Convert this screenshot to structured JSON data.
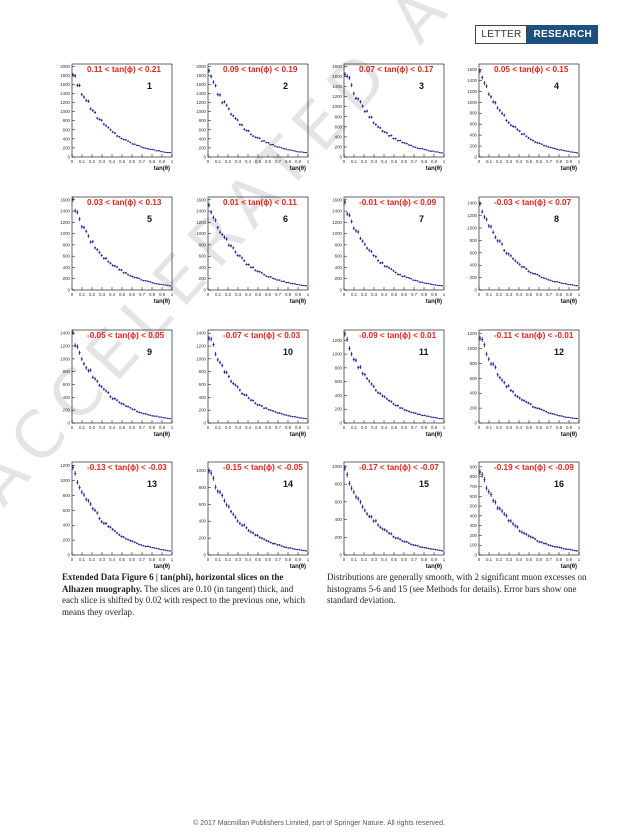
{
  "header": {
    "letter": "LETTER",
    "research": "RESEARCH"
  },
  "watermark": "ACCELERATED ARTICLE PREVIEW",
  "caption": {
    "title": "Extended Data Figure 6 | tan(phi), horizontal slices on the Alhazen muography.",
    "body": " The slices are 0.10 (in tangent) thick, and each slice is shifted by 0.02 with respect to the previous one, which means they overlap.",
    "right": "Distributions are generally smooth, with 2 significant muon excesses on histograms 5-6 and 15 (see Methods for details). Error bars show one standard deviation."
  },
  "footer": "© 2017 Macmillan Publishers Limited, part of Springer Nature. All rights reserved.",
  "colors": {
    "series": "#1a1f8c",
    "label": "#e2231a",
    "axis": "#000000",
    "badge": "#1e4f7d"
  },
  "chart_data": [
    {
      "type": "scatter",
      "xlabel": "tan(θ)",
      "xlim": [
        0,
        1
      ],
      "xticks": [
        "0",
        "0.1",
        "0.2",
        "0.3",
        "0.4",
        "0.5",
        "0.6",
        "0.7",
        "0.8",
        "0.9",
        "1"
      ],
      "label": "0.11 < tan(ϕ) < 0.21",
      "index": "1",
      "yticks": [
        0,
        200,
        400,
        600,
        800,
        1000,
        1200,
        1400,
        1600,
        1800,
        2000
      ],
      "ymax": 2050,
      "peak": 1950
    },
    {
      "type": "scatter",
      "xlabel": "tan(θ)",
      "xlim": [
        0,
        1
      ],
      "xticks": [
        "0",
        "0.1",
        "0.2",
        "0.3",
        "0.4",
        "0.5",
        "0.6",
        "0.7",
        "0.8",
        "0.9",
        "1"
      ],
      "label": "0.09 < tan(ϕ) < 0.19",
      "index": "2",
      "yticks": [
        0,
        200,
        400,
        600,
        800,
        1000,
        1200,
        1400,
        1600,
        1800,
        2000
      ],
      "ymax": 2050,
      "peak": 1950
    },
    {
      "type": "scatter",
      "xlabel": "tan(θ)",
      "xlim": [
        0,
        1
      ],
      "xticks": [
        "0",
        "0.1",
        "0.2",
        "0.3",
        "0.4",
        "0.5",
        "0.6",
        "0.7",
        "0.8",
        "0.9",
        "1"
      ],
      "label": "0.07 < tan(ϕ) < 0.17",
      "index": "3",
      "yticks": [
        0,
        200,
        400,
        600,
        800,
        1000,
        1200,
        1400,
        1600,
        1800
      ],
      "ymax": 1850,
      "peak": 1780
    },
    {
      "type": "scatter",
      "xlabel": "tan(θ)",
      "xlim": [
        0,
        1
      ],
      "xticks": [
        "0",
        "0.1",
        "0.2",
        "0.3",
        "0.4",
        "0.5",
        "0.6",
        "0.7",
        "0.8",
        "0.9",
        "1"
      ],
      "label": "0.05 < tan(ϕ) < 0.15",
      "index": "4",
      "yticks": [
        0,
        200,
        400,
        600,
        800,
        1000,
        1200,
        1400,
        1600
      ],
      "ymax": 1700,
      "peak": 1620
    },
    {
      "type": "scatter",
      "xlabel": "tan(θ)",
      "xlim": [
        0,
        1
      ],
      "xticks": [
        "0",
        "0.1",
        "0.2",
        "0.3",
        "0.4",
        "0.5",
        "0.6",
        "0.7",
        "0.8",
        "0.9",
        "1"
      ],
      "label": "0.03 < tan(ϕ) < 0.13",
      "index": "5",
      "yticks": [
        0,
        200,
        400,
        600,
        800,
        1000,
        1200,
        1400,
        1600
      ],
      "ymax": 1650,
      "peak": 1580
    },
    {
      "type": "scatter",
      "xlabel": "tan(θ)",
      "xlim": [
        0,
        1
      ],
      "xticks": [
        "0",
        "0.1",
        "0.2",
        "0.3",
        "0.4",
        "0.5",
        "0.6",
        "0.7",
        "0.8",
        "0.9",
        "1"
      ],
      "label": "0.01 < tan(ϕ) < 0.11",
      "index": "6",
      "yticks": [
        0,
        200,
        400,
        600,
        800,
        1000,
        1200,
        1400,
        1600
      ],
      "ymax": 1650,
      "peak": 1560
    },
    {
      "type": "scatter",
      "xlabel": "tan(θ)",
      "xlim": [
        0,
        1
      ],
      "xticks": [
        "0",
        "0.1",
        "0.2",
        "0.3",
        "0.4",
        "0.5",
        "0.6",
        "0.7",
        "0.8",
        "0.9",
        "1"
      ],
      "label": "-0.01 < tan(ϕ) < 0.09",
      "index": "7",
      "yticks": [
        0,
        200,
        400,
        600,
        800,
        1000,
        1200,
        1400,
        1600
      ],
      "ymax": 1650,
      "peak": 1540
    },
    {
      "type": "scatter",
      "xlabel": "tan(θ)",
      "xlim": [
        0,
        1
      ],
      "xticks": [
        "0",
        "0.1",
        "0.2",
        "0.3",
        "0.4",
        "0.5",
        "0.6",
        "0.7",
        "0.8",
        "0.9",
        "1"
      ],
      "label": "-0.03 < tan(ϕ) < 0.07",
      "index": "8",
      "yticks": [
        0,
        200,
        400,
        600,
        800,
        1000,
        1200,
        1400
      ],
      "ymax": 1500,
      "peak": 1450
    },
    {
      "type": "scatter",
      "xlabel": "tan(θ)",
      "xlim": [
        0,
        1
      ],
      "xticks": [
        "0",
        "0.1",
        "0.2",
        "0.3",
        "0.4",
        "0.5",
        "0.6",
        "0.7",
        "0.8",
        "0.9",
        "1"
      ],
      "label": "-0.05 < tan(ϕ) < 0.05",
      "index": "9",
      "yticks": [
        0,
        200,
        400,
        600,
        800,
        1000,
        1200,
        1400
      ],
      "ymax": 1450,
      "peak": 1400
    },
    {
      "type": "scatter",
      "xlabel": "tan(θ)",
      "xlim": [
        0,
        1
      ],
      "xticks": [
        "0",
        "0.1",
        "0.2",
        "0.3",
        "0.4",
        "0.5",
        "0.6",
        "0.7",
        "0.8",
        "0.9",
        "1"
      ],
      "label": "-0.07 < tan(ϕ) < 0.03",
      "index": "10",
      "yticks": [
        0,
        200,
        400,
        600,
        800,
        1000,
        1200,
        1400
      ],
      "ymax": 1450,
      "peak": 1380
    },
    {
      "type": "scatter",
      "xlabel": "tan(θ)",
      "xlim": [
        0,
        1
      ],
      "xticks": [
        "0",
        "0.1",
        "0.2",
        "0.3",
        "0.4",
        "0.5",
        "0.6",
        "0.7",
        "0.8",
        "0.9",
        "1"
      ],
      "label": "-0.09 < tan(ϕ) < 0.01",
      "index": "11",
      "yticks": [
        0,
        200,
        400,
        600,
        800,
        1000,
        1200
      ],
      "ymax": 1350,
      "peak": 1290
    },
    {
      "type": "scatter",
      "xlabel": "tan(θ)",
      "xlim": [
        0,
        1
      ],
      "xticks": [
        "0",
        "0.1",
        "0.2",
        "0.3",
        "0.4",
        "0.5",
        "0.6",
        "0.7",
        "0.8",
        "0.9",
        "1"
      ],
      "label": "-0.11 < tan(ϕ) < -0.01",
      "index": "12",
      "yticks": [
        0,
        200,
        400,
        600,
        800,
        1000,
        1200
      ],
      "ymax": 1250,
      "peak": 1200
    },
    {
      "type": "scatter",
      "xlabel": "tan(θ)",
      "xlim": [
        0,
        1
      ],
      "xticks": [
        "0",
        "0.1",
        "0.2",
        "0.3",
        "0.4",
        "0.5",
        "0.6",
        "0.7",
        "0.8",
        "0.9",
        "1"
      ],
      "label": "-0.13 < tan(ϕ) < -0.03",
      "index": "13",
      "yticks": [
        0,
        200,
        400,
        600,
        800,
        1000,
        1200
      ],
      "ymax": 1250,
      "peak": 1180
    },
    {
      "type": "scatter",
      "xlabel": "tan(θ)",
      "xlim": [
        0,
        1
      ],
      "xticks": [
        "0",
        "0.1",
        "0.2",
        "0.3",
        "0.4",
        "0.5",
        "0.6",
        "0.7",
        "0.8",
        "0.9",
        "1"
      ],
      "label": "-0.15 < tan(ϕ) < -0.05",
      "index": "14",
      "yticks": [
        0,
        200,
        400,
        600,
        800,
        1000
      ],
      "ymax": 1100,
      "peak": 1050
    },
    {
      "type": "scatter",
      "xlabel": "tan(θ)",
      "xlim": [
        0,
        1
      ],
      "xticks": [
        "0",
        "0.1",
        "0.2",
        "0.3",
        "0.4",
        "0.5",
        "0.6",
        "0.7",
        "0.8",
        "0.9",
        "1"
      ],
      "label": "-0.17 < tan(ϕ) < -0.07",
      "index": "15",
      "yticks": [
        0,
        200,
        400,
        600,
        800,
        1000
      ],
      "ymax": 1050,
      "peak": 990
    },
    {
      "type": "scatter",
      "xlabel": "tan(θ)",
      "xlim": [
        0,
        1
      ],
      "xticks": [
        "0",
        "0.1",
        "0.2",
        "0.3",
        "0.4",
        "0.5",
        "0.6",
        "0.7",
        "0.8",
        "0.9",
        "1"
      ],
      "label": "-0.19 < tan(ϕ) < -0.09",
      "index": "16",
      "yticks": [
        0,
        100,
        200,
        300,
        400,
        500,
        600,
        700,
        800,
        900
      ],
      "ymax": 950,
      "peak": 900
    }
  ]
}
